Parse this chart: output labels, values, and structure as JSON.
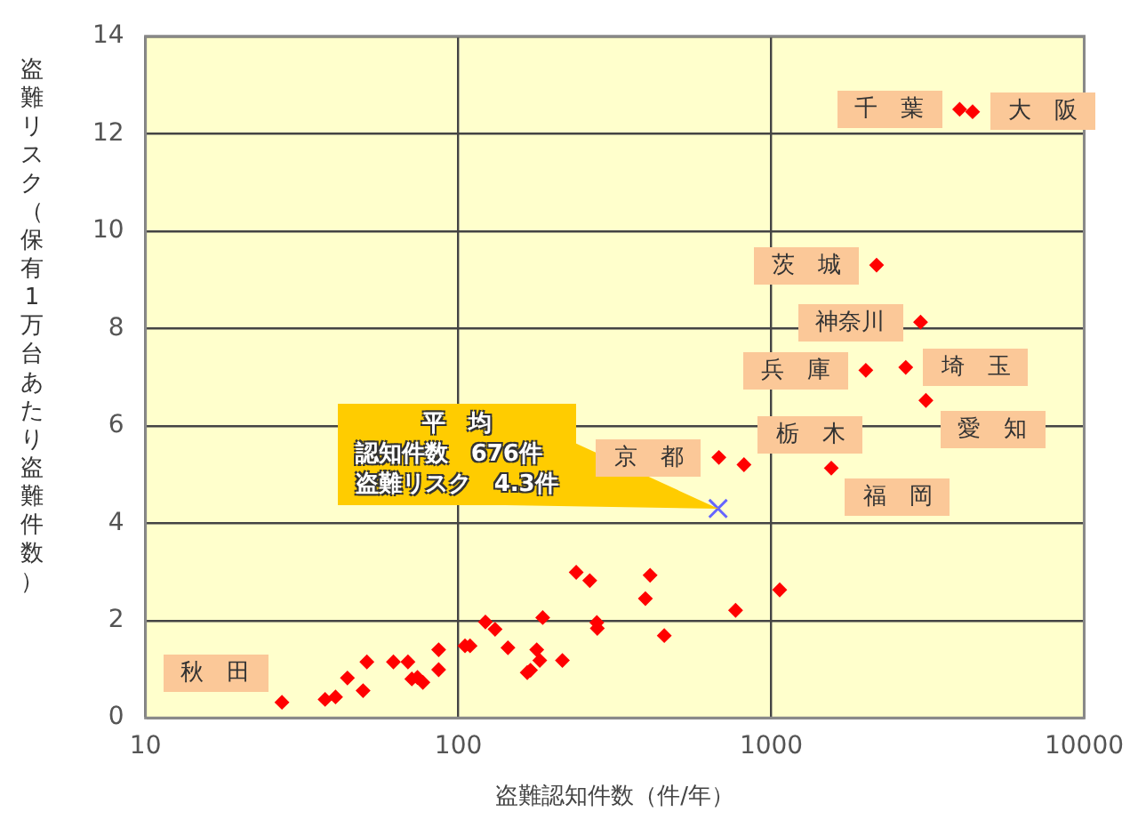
{
  "chart_data": {
    "type": "scatter",
    "xlabel": "盗難認知件数（件/年）",
    "ylabel": "盗難リスク（保有1万台あたり盗難件数）",
    "log": "x",
    "xlim": [
      10,
      10000
    ],
    "xticks": [
      10,
      100,
      1000,
      10000
    ],
    "ylim": [
      0,
      14
    ],
    "yticks": [
      0,
      2,
      4,
      6,
      8,
      10,
      12,
      14
    ],
    "grid": true,
    "legend": false,
    "series": [
      {
        "color": "#ff0000",
        "marker": "diamond",
        "x": [
          4000,
          4400,
          2170,
          3000,
          2005,
          2690,
          3120,
          680,
          818,
          1555,
          27.3,
          37.5,
          40.5,
          44.2,
          49.6,
          51,
          62,
          69,
          71,
          74,
          77,
          86.5,
          86.5,
          105,
          109,
          122,
          131,
          144,
          166,
          170,
          178,
          182,
          186,
          215,
          238,
          263,
          277,
          278,
          396,
          410,
          455,
          769,
          1064
        ],
        "values": [
          12.5,
          12.45,
          9.3,
          8.13,
          7.14,
          7.2,
          6.52,
          5.35,
          5.2,
          5.13,
          0.32,
          0.38,
          0.43,
          0.82,
          0.56,
          1.15,
          1.15,
          1.15,
          0.8,
          0.83,
          0.73,
          0.99,
          1.4,
          1.48,
          1.48,
          1.97,
          1.82,
          1.44,
          0.93,
          0.98,
          1.4,
          1.18,
          2.06,
          1.18,
          2.99,
          2.82,
          1.96,
          1.84,
          2.45,
          2.93,
          1.69,
          2.21,
          2.63
        ]
      },
      {
        "color": "#6666ff",
        "marker": "cross",
        "x": [
          676
        ],
        "values": [
          4.3
        ]
      }
    ],
    "annotations": [
      {
        "text": "千　葉",
        "x": 4000,
        "y": 12.5
      },
      {
        "text": "大　阪",
        "x": 4400,
        "y": 12.45
      },
      {
        "text": "茨　城",
        "x": 2170,
        "y": 9.3
      },
      {
        "text": "神奈川",
        "x": 3000,
        "y": 8.13
      },
      {
        "text": "埼　玉",
        "x": 2690,
        "y": 7.2
      },
      {
        "text": "兵　庫",
        "x": 2005,
        "y": 7.14
      },
      {
        "text": "愛　知",
        "x": 3120,
        "y": 6.52
      },
      {
        "text": "京　都",
        "x": 680,
        "y": 5.35
      },
      {
        "text": "栃　木",
        "x": 818,
        "y": 5.2
      },
      {
        "text": "福　岡",
        "x": 1555,
        "y": 5.13
      },
      {
        "text": "秋　田",
        "x": 27.3,
        "y": 0.32
      },
      {
        "text": "平　均",
        "x": 676,
        "y": 4.3
      },
      {
        "text": "認知件数　676件",
        "x": 676,
        "y": 4.3
      },
      {
        "text": "盗難リスク　4.3件",
        "x": 676,
        "y": 4.3
      }
    ]
  }
}
